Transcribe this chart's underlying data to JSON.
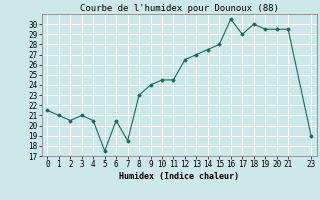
{
  "x": [
    0,
    1,
    2,
    3,
    4,
    5,
    6,
    7,
    8,
    9,
    10,
    11,
    12,
    13,
    14,
    15,
    16,
    17,
    18,
    19,
    20,
    21,
    23
  ],
  "y": [
    21.5,
    21.0,
    20.5,
    21.0,
    20.5,
    17.5,
    20.5,
    18.5,
    23.0,
    24.0,
    24.5,
    24.5,
    26.5,
    27.0,
    27.5,
    28.0,
    30.5,
    29.0,
    30.0,
    29.5,
    29.5,
    29.5,
    19.0
  ],
  "title": "Courbe de l'humidex pour Dounoux (88)",
  "xlabel": "Humidex (Indice chaleur)",
  "ylabel": "",
  "xlim": [
    -0.5,
    23.5
  ],
  "ylim": [
    17,
    31
  ],
  "yticks": [
    17,
    18,
    19,
    20,
    21,
    22,
    23,
    24,
    25,
    26,
    27,
    28,
    29,
    30
  ],
  "xticks": [
    0,
    1,
    2,
    3,
    4,
    5,
    6,
    7,
    8,
    9,
    10,
    11,
    12,
    13,
    14,
    15,
    16,
    17,
    18,
    19,
    20,
    21,
    23
  ],
  "line_color": "#1a6b5a",
  "marker": "D",
  "marker_size": 1.5,
  "bg_color": "#cce8e8",
  "grid_color": "#ffffff",
  "title_fontsize": 6.5,
  "label_fontsize": 6,
  "tick_fontsize": 5.5
}
